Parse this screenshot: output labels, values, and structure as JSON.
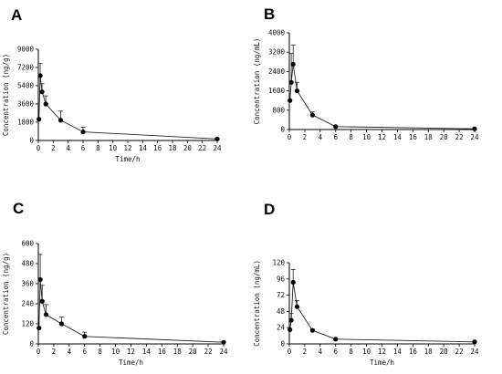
{
  "chart_data": [
    {
      "type": "line",
      "panel_label": "A",
      "xlabel": "Time/h",
      "ylabel": "Concentration (ng/g)",
      "x_ticks": [
        "0",
        "2",
        "4",
        "6",
        "8",
        "10",
        "12",
        "14",
        "16",
        "18",
        "20",
        "22",
        "24"
      ],
      "y_ticks": [
        "0",
        "1800",
        "3600",
        "5400",
        "7200",
        "9000"
      ],
      "xlim": [
        0,
        24
      ],
      "ylim": [
        0,
        9000
      ],
      "series": [
        {
          "x": [
            0.083,
            0.25,
            0.5,
            1,
            3,
            6,
            24
          ],
          "y": [
            2100,
            6400,
            4800,
            3600,
            2000,
            850,
            150
          ],
          "err": [
            0,
            1200,
            800,
            800,
            900,
            450,
            80
          ]
        }
      ]
    },
    {
      "type": "line",
      "panel_label": "B",
      "xlabel": "",
      "ylabel": "Concentration (ng/mL)",
      "x_ticks": [
        "0",
        "2",
        "4",
        "6",
        "8",
        "10",
        "12",
        "14",
        "16",
        "18",
        "20",
        "22",
        "24"
      ],
      "y_ticks": [
        "0",
        "800",
        "1600",
        "2400",
        "3200",
        "4000"
      ],
      "xlim": [
        0,
        24
      ],
      "ylim": [
        0,
        4000
      ],
      "series": [
        {
          "x": [
            0.083,
            0.25,
            0.5,
            1,
            3,
            6,
            24
          ],
          "y": [
            1200,
            1950,
            2700,
            1600,
            600,
            120,
            30
          ],
          "err": [
            0,
            1200,
            800,
            350,
            130,
            30,
            10
          ]
        }
      ]
    },
    {
      "type": "line",
      "panel_label": "C",
      "xlabel": "Time/h",
      "ylabel": "Concentration (ng/g)",
      "x_ticks": [
        "0",
        "2",
        "4",
        "6",
        "8",
        "10",
        "12",
        "14",
        "16",
        "18",
        "20",
        "22",
        "24"
      ],
      "y_ticks": [
        "0",
        "120",
        "240",
        "360",
        "480",
        "600"
      ],
      "xlim": [
        0,
        24
      ],
      "ylim": [
        0,
        600
      ],
      "series": [
        {
          "x": [
            0.083,
            0.25,
            0.5,
            1,
            3,
            6,
            24
          ],
          "y": [
            95,
            385,
            255,
            175,
            120,
            45,
            10
          ],
          "err": [
            0,
            150,
            95,
            60,
            40,
            25,
            5
          ]
        }
      ]
    },
    {
      "type": "line",
      "panel_label": "D",
      "xlabel": "Time/h",
      "ylabel": "Concentration (ng/mL)",
      "x_ticks": [
        "0",
        "2",
        "4",
        "6",
        "8",
        "10",
        "12",
        "14",
        "16",
        "18",
        "20",
        "22",
        "24"
      ],
      "y_ticks": [
        "0",
        "24",
        "48",
        "72",
        "96",
        "120"
      ],
      "xlim": [
        0,
        24
      ],
      "ylim": [
        0,
        120
      ],
      "series": [
        {
          "x": [
            0.083,
            0.25,
            0.5,
            1,
            3,
            6,
            24
          ],
          "y": [
            21,
            35,
            91,
            55,
            20,
            7,
            3
          ],
          "err": [
            0,
            10,
            19,
            9,
            2,
            1,
            1
          ]
        }
      ]
    }
  ]
}
